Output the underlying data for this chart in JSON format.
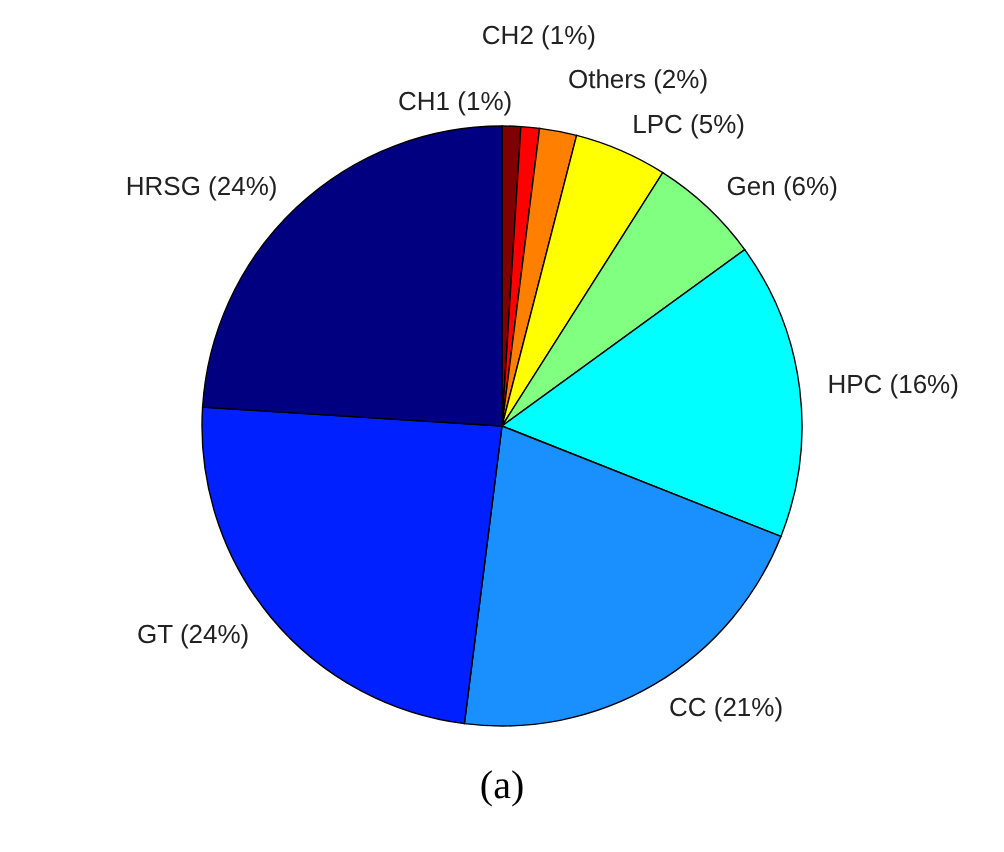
{
  "chart_data": {
    "type": "pie",
    "categories": [
      "CH1",
      "CH2",
      "Others",
      "LPC",
      "Gen",
      "HPC",
      "CC",
      "GT",
      "HRSG"
    ],
    "values": [
      1,
      1,
      2,
      5,
      6,
      16,
      21,
      24,
      24
    ],
    "value_labels": [
      "(1%)",
      "(1%)",
      "(2%)",
      "(5%)",
      "(6%)",
      "(16%)",
      "(21%)",
      "(24%)",
      "(24%)"
    ],
    "colors": [
      "#800000",
      "#ff0000",
      "#ff8000",
      "#ffff00",
      "#80ff80",
      "#00ffff",
      "#1a90ff",
      "#0020ff",
      "#000080"
    ],
    "annotations": [
      "(a)"
    ]
  }
}
